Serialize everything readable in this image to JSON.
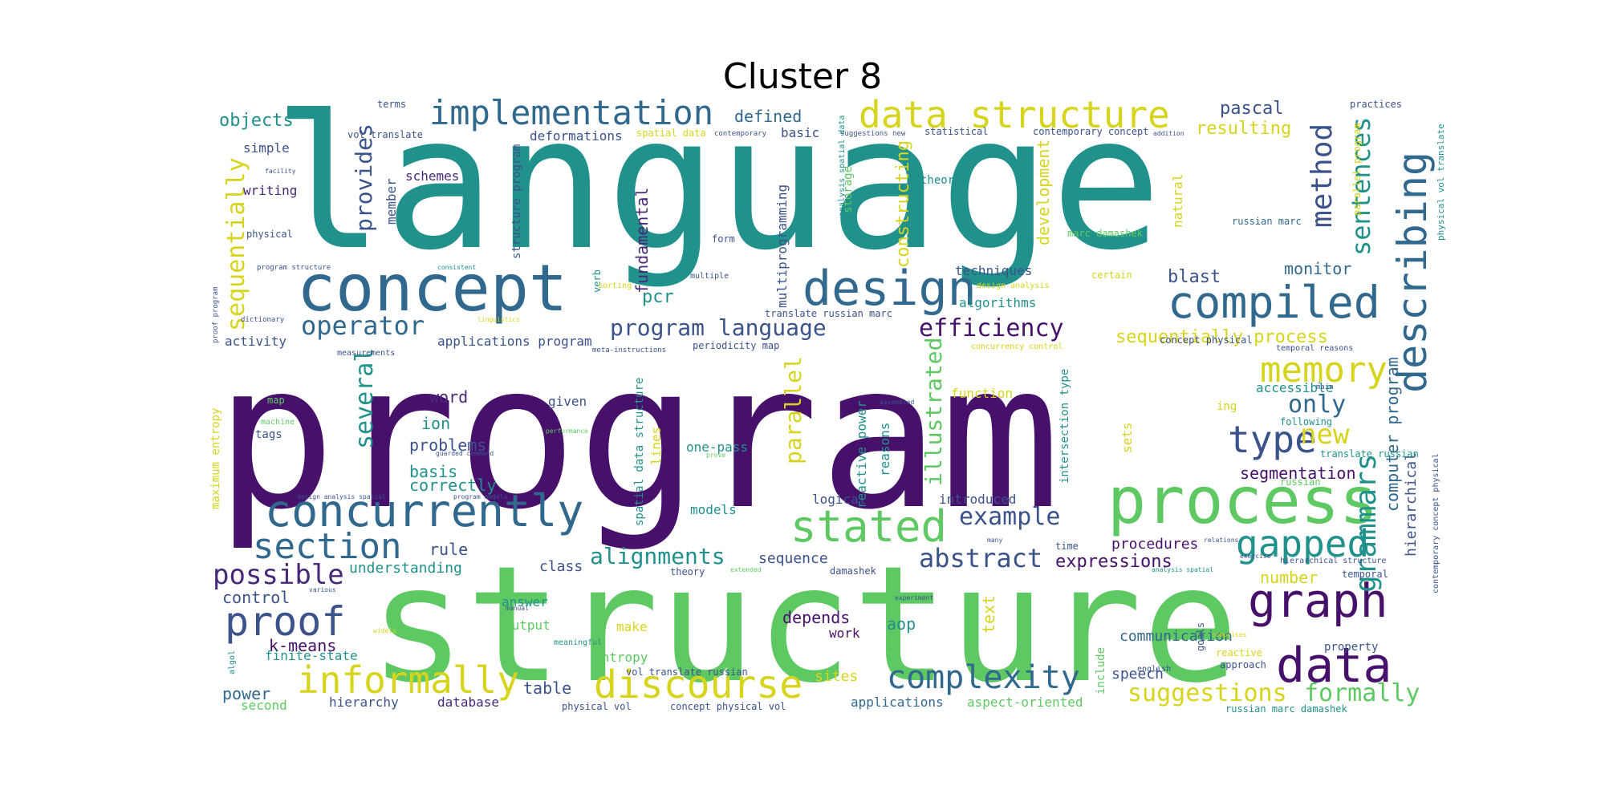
{
  "title": "Cluster 8",
  "colors": {
    "purple": "#46106b",
    "teal": "#21918c",
    "green": "#5ec962",
    "blue": "#31688e",
    "yellow": "#d6d41c",
    "lightgreen": "#8fd744",
    "navy": "#3b528b",
    "dark": "#482878"
  },
  "words": {
    "language": "language",
    "program": "program",
    "structure": "structure",
    "concept": "concept",
    "process": "process",
    "concurrently": "concurrently",
    "data_structure": "data structure",
    "implementation": "implementation",
    "design": "design",
    "compiled": "compiled",
    "describing": "describing",
    "method": "method",
    "sentences": "sentences",
    "memory": "memory",
    "stated": "stated",
    "section": "section",
    "proof": "proof",
    "informally": "informally",
    "discourse": "discourse",
    "complexity": "complexity",
    "data": "data",
    "graph": "graph",
    "gapped": "gapped",
    "grammars": "grammars",
    "efficiency": "efficiency",
    "program_language": "program language",
    "operator": "operator",
    "type": "type",
    "abstract": "abstract",
    "example": "example",
    "possible": "possible",
    "alignments": "alignments",
    "suggestions": "suggestions",
    "formally": "formally",
    "sequentially": "sequentially",
    "provides": "provides",
    "several": "several",
    "parallel": "parallel",
    "illustrated": "illustrated",
    "new": "new",
    "only": "only",
    "pascal": "pascal",
    "resulting": "resulting",
    "defined": "defined",
    "objects": "objects",
    "sequentially_process": "sequentially process",
    "blast": "blast",
    "monitor": "monitor",
    "pcr": "pcr",
    "fundamental": "fundamental",
    "constructing": "constructing",
    "development": "development",
    "computer_program": "computer program",
    "segmentation": "segmentation",
    "hierarchical": "hierarchical",
    "expressions": "expressions",
    "number": "number",
    "depends": "depends",
    "k_means": "k-means",
    "power": "power",
    "control": "control",
    "word": "word",
    "ion": "ion",
    "problems": "problems",
    "basis": "basis",
    "correctly": "correctly",
    "rule": "rule",
    "understanding": "understanding",
    "class": "class",
    "sequence": "sequence",
    "procedures": "procedures",
    "communication": "communication",
    "speech": "speech",
    "aop": "aop",
    "text": "text",
    "sites": "sites",
    "table": "table",
    "applications": "applications",
    "aspect_oriented": "aspect-oriented",
    "hierarchy": "hierarchy",
    "database": "database",
    "second": "second",
    "finite_state": "finite-state",
    "output": "output",
    "answer": "answer",
    "make": "make",
    "entropy": "entropy",
    "work": "work",
    "models": "models",
    "one_pass": "one-pass",
    "given": "given",
    "logical": "logical",
    "introduced": "introduced",
    "function": "function",
    "accessible": "accessible",
    "techniques": "techniques",
    "algorithms": "algorithms",
    "applications_program": "applications program",
    "activity": "activity",
    "writing": "writing",
    "simple": "simple",
    "member": "member",
    "schemes": "schemes",
    "deformations": "deformations",
    "basic": "basic",
    "theorem": "theorem",
    "multiprogramming": "multiprogramming",
    "spatial_data_structure": "spatial data structure",
    "structure_program": "structure program",
    "reactive_power": "reactive power",
    "reasons": "reasons",
    "sets": "sets",
    "intersection_type": "intersection type",
    "lines": "lines",
    "tags": "tags",
    "maximum_entropy": "maximum entropy",
    "vol_translate": "vol translate",
    "spatial_data": "spatial data",
    "terms": "terms",
    "physical": "physical",
    "map": "map",
    "storage": "storage",
    "natural": "natural",
    "statistical": "statistical",
    "contemporary_concept": "contemporary concept",
    "practices": "practices",
    "russian_marc": "russian marc",
    "marc_damashek": "marc damashek",
    "certain": "certain",
    "following": "following",
    "translate_russian": "translate russian",
    "russian": "russian",
    "theory": "theory",
    "damashek": "damashek",
    "time": "time",
    "vol_translate_russian": "vol translate russian",
    "physical_vol": "physical vol",
    "concept_physical_vol": "concept physical vol",
    "russian_marc_damashek": "russian marc damashek",
    "reactive": "reactive",
    "approach": "approach",
    "include": "include",
    "goals": "goals",
    "property": "property",
    "temporal": "temporal",
    "english": "english",
    "form": "form",
    "multiple": "multiple",
    "verb": "verb",
    "periodicity_map": "periodicity map",
    "concurrency_control": "concurrency control",
    "translate_russian_marc": "translate russian marc",
    "concept_physical": "concept physical",
    "temporal_reasons": "temporal reasons",
    "meta_instructions": "meta-instructions",
    "sorting": "sorting",
    "design_analysis": "design analysis",
    "analysis_spatial_data": "analysis spatial data",
    "parallel_program": "parallel program",
    "physical_vol_translate": "physical vol translate",
    "contemporary_concept_physical": "contemporary concept physical",
    "hierarchical_structure": "hierarchical structure",
    "program_structure": "program structure",
    "proof_program": "proof program",
    "dictionary": "dictionary",
    "facility": "facility",
    "consistent": "consistent",
    "linguistics": "linguistics",
    "measurements": "measurements",
    "contemporary": "contemporary",
    "suggestions_new": "suggestions new",
    "addition": "addition",
    "main": "main",
    "ing": "ing",
    "guarded_command": "guarded command",
    "performance": "performance",
    "meaningful": "meaningful",
    "manual": "manual",
    "widely": "widely",
    "algol": "algol",
    "various": "various",
    "extended": "extended",
    "experiment": "experiment",
    "comprises": "comprises",
    "exercise": "exercise",
    "relations": "relations",
    "assembled": "assembled",
    "design_analysis_spatial": "design analysis spatial",
    "analysis_spatial": "analysis spatial",
    "machine": "machine",
    "program_models": "program models",
    "prove": "prove",
    "many": "many"
  }
}
